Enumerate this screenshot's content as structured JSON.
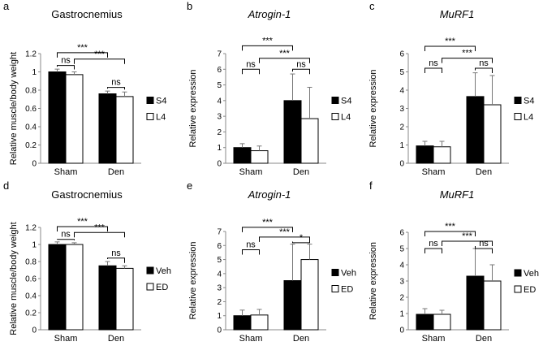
{
  "figure": {
    "description": "Six-panel bar chart figure"
  },
  "chart_data": [
    {
      "panel": "a",
      "type": "bar",
      "title": "Gastrocnemius",
      "title_italic": false,
      "ylabel": "Relative muscle/body weight",
      "xlabel": "",
      "categories": [
        "Sham",
        "Den"
      ],
      "series": [
        {
          "name": "S4",
          "color": "#000000",
          "values": [
            1.0,
            0.76
          ],
          "errors": [
            0.03,
            0.03
          ]
        },
        {
          "name": "L4",
          "color": "#ffffff",
          "values": [
            0.97,
            0.73
          ],
          "errors": [
            0.03,
            0.05
          ]
        }
      ],
      "ylim": [
        0,
        1.2
      ],
      "yticks": [
        "0",
        "0.2",
        "0.4",
        "0.6",
        "0.8",
        "1",
        "1.2"
      ],
      "annotations": [
        {
          "label": "ns",
          "from": [
            0,
            0
          ],
          "to": [
            0,
            1
          ],
          "level": 1.07
        },
        {
          "label": "ns",
          "from": [
            1,
            0
          ],
          "to": [
            1,
            1
          ],
          "level": 0.83
        },
        {
          "label": "***",
          "from": [
            0,
            0
          ],
          "to": [
            1,
            0
          ],
          "level": 1.21
        },
        {
          "label": "***",
          "from": [
            0,
            1
          ],
          "to": [
            1,
            1
          ],
          "level": 1.14
        }
      ],
      "legend": "right"
    },
    {
      "panel": "b",
      "type": "bar",
      "title": "Atrogin-1",
      "title_italic": true,
      "ylabel": "Relative expression",
      "xlabel": "",
      "categories": [
        "Sham",
        "Den"
      ],
      "series": [
        {
          "name": "S4",
          "color": "#000000",
          "values": [
            1.0,
            4.0
          ],
          "errors": [
            0.25,
            1.7
          ]
        },
        {
          "name": "L4",
          "color": "#ffffff",
          "values": [
            0.8,
            2.85
          ],
          "errors": [
            0.3,
            2.0
          ]
        }
      ],
      "ylim": [
        0,
        7
      ],
      "yticks": [
        "0",
        "1",
        "2",
        "3",
        "4",
        "5",
        "6",
        "7"
      ],
      "annotations": [
        {
          "label": "ns",
          "from": [
            0,
            0
          ],
          "to": [
            0,
            1
          ],
          "level": 6.0
        },
        {
          "label": "ns",
          "from": [
            1,
            0
          ],
          "to": [
            1,
            1
          ],
          "level": 6.0
        },
        {
          "label": "***",
          "from": [
            0,
            0
          ],
          "to": [
            1,
            0
          ],
          "level": 7.5
        },
        {
          "label": "***",
          "from": [
            0,
            1
          ],
          "to": [
            1,
            1
          ],
          "level": 6.7
        }
      ],
      "legend": "right"
    },
    {
      "panel": "c",
      "type": "bar",
      "title": "MuRF1",
      "title_italic": true,
      "ylabel": "Relative expression",
      "xlabel": "",
      "categories": [
        "Sham",
        "Den"
      ],
      "series": [
        {
          "name": "S4",
          "color": "#000000",
          "values": [
            0.95,
            3.65
          ],
          "errors": [
            0.25,
            1.3
          ]
        },
        {
          "name": "L4",
          "color": "#ffffff",
          "values": [
            0.9,
            3.2
          ],
          "errors": [
            0.3,
            1.6
          ]
        }
      ],
      "ylim": [
        0,
        6
      ],
      "yticks": [
        "0",
        "1",
        "2",
        "3",
        "4",
        "5",
        "6"
      ],
      "annotations": [
        {
          "label": "ns",
          "from": [
            0,
            0
          ],
          "to": [
            0,
            1
          ],
          "level": 5.2
        },
        {
          "label": "ns",
          "from": [
            1,
            0
          ],
          "to": [
            1,
            1
          ],
          "level": 5.2
        },
        {
          "label": "***",
          "from": [
            0,
            0
          ],
          "to": [
            1,
            0
          ],
          "level": 6.4
        },
        {
          "label": "***",
          "from": [
            0,
            1
          ],
          "to": [
            1,
            1
          ],
          "level": 5.75
        }
      ],
      "legend": "right"
    },
    {
      "panel": "d",
      "type": "bar",
      "title": "Gastrocnemius",
      "title_italic": false,
      "ylabel": "Relative muscle/body weight",
      "xlabel": "",
      "categories": [
        "Sham",
        "Den"
      ],
      "series": [
        {
          "name": "Veh",
          "color": "#000000",
          "values": [
            1.0,
            0.75
          ],
          "errors": [
            0.03,
            0.05
          ]
        },
        {
          "name": "ED",
          "color": "#ffffff",
          "values": [
            1.0,
            0.72
          ],
          "errors": [
            0.02,
            0.03
          ]
        }
      ],
      "ylim": [
        0,
        1.2
      ],
      "yticks": [
        "0",
        "0.2",
        "0.4",
        "0.6",
        "0.8",
        "1",
        "1.2"
      ],
      "annotations": [
        {
          "label": "ns",
          "from": [
            0,
            0
          ],
          "to": [
            0,
            1
          ],
          "level": 1.06
        },
        {
          "label": "ns",
          "from": [
            1,
            0
          ],
          "to": [
            1,
            1
          ],
          "level": 0.84
        },
        {
          "label": "***",
          "from": [
            0,
            0
          ],
          "to": [
            1,
            0
          ],
          "level": 1.21
        },
        {
          "label": "***",
          "from": [
            0,
            1
          ],
          "to": [
            1,
            1
          ],
          "level": 1.14
        }
      ],
      "legend": "right"
    },
    {
      "panel": "e",
      "type": "bar",
      "title": "Atrogin-1",
      "title_italic": true,
      "ylabel": "Relative expression",
      "xlabel": "",
      "categories": [
        "Sham",
        "Den"
      ],
      "series": [
        {
          "name": "Veh",
          "color": "#000000",
          "values": [
            1.0,
            3.5
          ],
          "errors": [
            0.4,
            2.6
          ]
        },
        {
          "name": "ED",
          "color": "#ffffff",
          "values": [
            1.05,
            5.0
          ],
          "errors": [
            0.4,
            1.1
          ]
        }
      ],
      "ylim": [
        0,
        7
      ],
      "yticks": [
        "0",
        "1",
        "2",
        "3",
        "4",
        "5",
        "6",
        "7"
      ],
      "annotations": [
        {
          "label": "ns",
          "from": [
            0,
            0
          ],
          "to": [
            0,
            1
          ],
          "level": 5.7
        },
        {
          "label": "*",
          "from": [
            1,
            0
          ],
          "to": [
            1,
            1
          ],
          "level": 6.2
        },
        {
          "label": "***",
          "from": [
            0,
            0
          ],
          "to": [
            1,
            0
          ],
          "level": 7.3
        },
        {
          "label": "***",
          "from": [
            0,
            1
          ],
          "to": [
            1,
            1
          ],
          "level": 6.6
        }
      ],
      "legend": "right"
    },
    {
      "panel": "f",
      "type": "bar",
      "title": "MuRF1",
      "title_italic": true,
      "ylabel": "Relative expression",
      "xlabel": "",
      "categories": [
        "Sham",
        "Den"
      ],
      "series": [
        {
          "name": "Veh",
          "color": "#000000",
          "values": [
            0.95,
            3.3
          ],
          "errors": [
            0.35,
            1.7
          ]
        },
        {
          "name": "ED",
          "color": "#ffffff",
          "values": [
            0.95,
            3.0
          ],
          "errors": [
            0.25,
            1.0
          ]
        }
      ],
      "ylim": [
        0,
        6
      ],
      "yticks": [
        "0",
        "1",
        "2",
        "3",
        "4",
        "5",
        "6"
      ],
      "annotations": [
        {
          "label": "ns",
          "from": [
            0,
            0
          ],
          "to": [
            0,
            1
          ],
          "level": 5.0
        },
        {
          "label": "ns",
          "from": [
            1,
            0
          ],
          "to": [
            1,
            1
          ],
          "level": 5.0
        },
        {
          "label": "***",
          "from": [
            0,
            0
          ],
          "to": [
            1,
            0
          ],
          "level": 6.05
        },
        {
          "label": "***",
          "from": [
            0,
            1
          ],
          "to": [
            1,
            1
          ],
          "level": 5.45
        }
      ],
      "legend": "right"
    }
  ]
}
